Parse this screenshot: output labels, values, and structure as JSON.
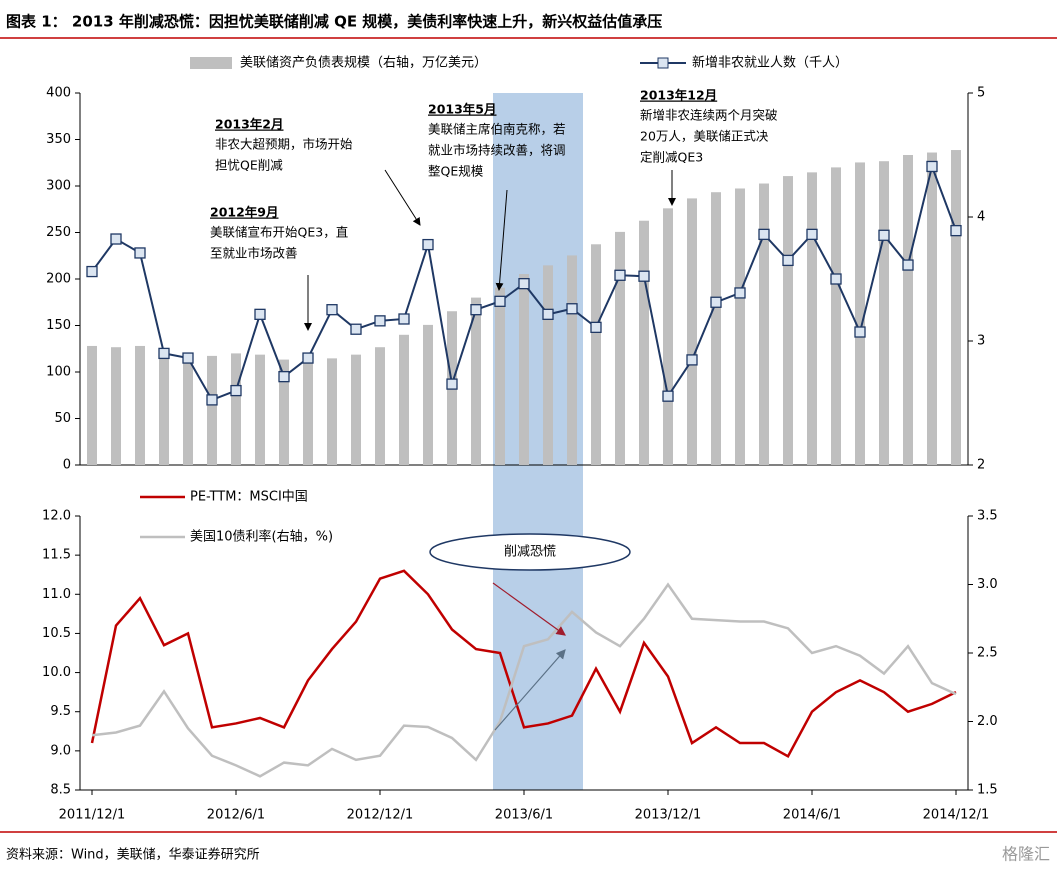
{
  "title": "图表 1： 2013 年削减恐慌：因担忧美联储削减 QE 规模，美债利率快速上升，新兴权益估值承压",
  "chart_data": [
    {
      "type": "combo",
      "categories": [
        null,
        null,
        null,
        null,
        null,
        null,
        null,
        null,
        null,
        null,
        null,
        null,
        null,
        null,
        null,
        null,
        null,
        null,
        null,
        null,
        null,
        null,
        null,
        null,
        null,
        null,
        null,
        null,
        null,
        null,
        null,
        null,
        null,
        null,
        null,
        null,
        null
      ],
      "ylim": [
        0,
        400
      ],
      "yticks": [
        0,
        50,
        100,
        150,
        200,
        250,
        300,
        350,
        400
      ],
      "y2lim": [
        2,
        5
      ],
      "y2ticks": [
        2,
        3,
        4,
        5
      ],
      "series": [
        {
          "name": "美联储资产负债表规模（右轴，万亿美元）",
          "type": "bar",
          "axis": "y2",
          "color": "#bfbfbf",
          "values": [
            2.96,
            2.95,
            2.96,
            2.9,
            2.89,
            2.88,
            2.9,
            2.89,
            2.85,
            2.87,
            2.86,
            2.89,
            2.95,
            3.05,
            3.13,
            3.24,
            3.35,
            3.43,
            3.54,
            3.61,
            3.69,
            3.78,
            3.88,
            3.97,
            4.07,
            4.15,
            4.2,
            4.23,
            4.27,
            4.33,
            4.36,
            4.4,
            4.44,
            4.45,
            4.5,
            4.52,
            4.54
          ]
        },
        {
          "name": "新增非农就业人数（千人）",
          "type": "line",
          "axis": "y",
          "color": "#1f3864",
          "values": [
            208,
            243,
            228,
            120,
            115,
            70,
            80,
            162,
            95,
            115,
            167,
            146,
            155,
            157,
            237,
            87,
            167,
            176,
            195,
            162,
            168,
            148,
            204,
            203,
            74,
            113,
            175,
            185,
            248,
            220,
            248,
            200,
            143,
            247,
            215,
            321,
            252
          ]
        }
      ],
      "annotations": [
        {
          "title": "2012年9月",
          "lines": [
            "美联储宣布开始QE3，直",
            "至就业市场改善"
          ]
        },
        {
          "title": "2013年2月",
          "lines": [
            "非农大超预期，市场开始",
            "担忧QE削减"
          ]
        },
        {
          "title": "2013年5月",
          "lines": [
            "美联储主席伯南克称，若",
            "就业市场持续改善，将调",
            "整QE规模"
          ]
        },
        {
          "title": "2013年12月",
          "lines": [
            "新增非农连续两个月突破",
            "20万人，美联储正式决",
            "定削减QE3"
          ]
        }
      ]
    },
    {
      "type": "line",
      "categories": [
        "2011/12/1",
        null,
        null,
        null,
        null,
        null,
        "2012/6/1",
        null,
        null,
        null,
        null,
        null,
        "2012/12/1",
        null,
        null,
        null,
        null,
        null,
        "2013/6/1",
        null,
        null,
        null,
        null,
        null,
        "2013/12/1",
        null,
        null,
        null,
        null,
        null,
        "2014/6/1",
        null,
        null,
        null,
        null,
        null,
        "2014/12/1"
      ],
      "ylim": [
        8.5,
        12
      ],
      "yticks": [
        8.5,
        {
          "value": 9,
          "label": "9.0"
        },
        9.5,
        {
          "value": 10,
          "label": "10.0"
        },
        10.5,
        {
          "value": 11,
          "label": "11.0"
        },
        11.5,
        {
          "value": 12,
          "label": "12.0"
        }
      ],
      "y2lim": [
        1.5,
        3.5
      ],
      "y2ticks": [
        1.5,
        {
          "value": 2,
          "label": "2.0"
        },
        2.5,
        {
          "value": 3,
          "label": "3.0"
        },
        3.5
      ],
      "series": [
        {
          "name": "PE-TTM：MSCI中国",
          "axis": "y",
          "color": "#c00000",
          "values": [
            9.1,
            10.6,
            10.95,
            10.35,
            10.5,
            9.3,
            9.35,
            9.42,
            9.3,
            9.9,
            10.3,
            10.65,
            11.2,
            11.3,
            11.0,
            10.55,
            10.3,
            10.25,
            9.3,
            9.35,
            9.45,
            10.05,
            9.5,
            10.38,
            9.95,
            9.1,
            9.3,
            9.1,
            9.1,
            8.93,
            9.5,
            9.75,
            9.9,
            9.75,
            9.5,
            9.6,
            9.75
          ]
        },
        {
          "name": "美国10债利率(右轴，%)",
          "axis": "y2",
          "color": "#bfbfbf",
          "values": [
            1.9,
            1.92,
            1.97,
            2.22,
            1.95,
            1.75,
            1.68,
            1.6,
            1.7,
            1.68,
            1.8,
            1.72,
            1.75,
            1.97,
            1.96,
            1.88,
            1.72,
            2.0,
            2.55,
            2.6,
            2.8,
            2.65,
            2.55,
            2.75,
            3.0,
            2.75,
            2.74,
            2.73,
            2.73,
            2.68,
            2.5,
            2.55,
            2.48,
            2.35,
            2.55,
            2.28,
            2.2
          ]
        }
      ],
      "annotation": "削减恐慌"
    }
  ],
  "source": "资料来源：Wind，美联储，华泰证券研究所",
  "watermark": "格隆汇"
}
